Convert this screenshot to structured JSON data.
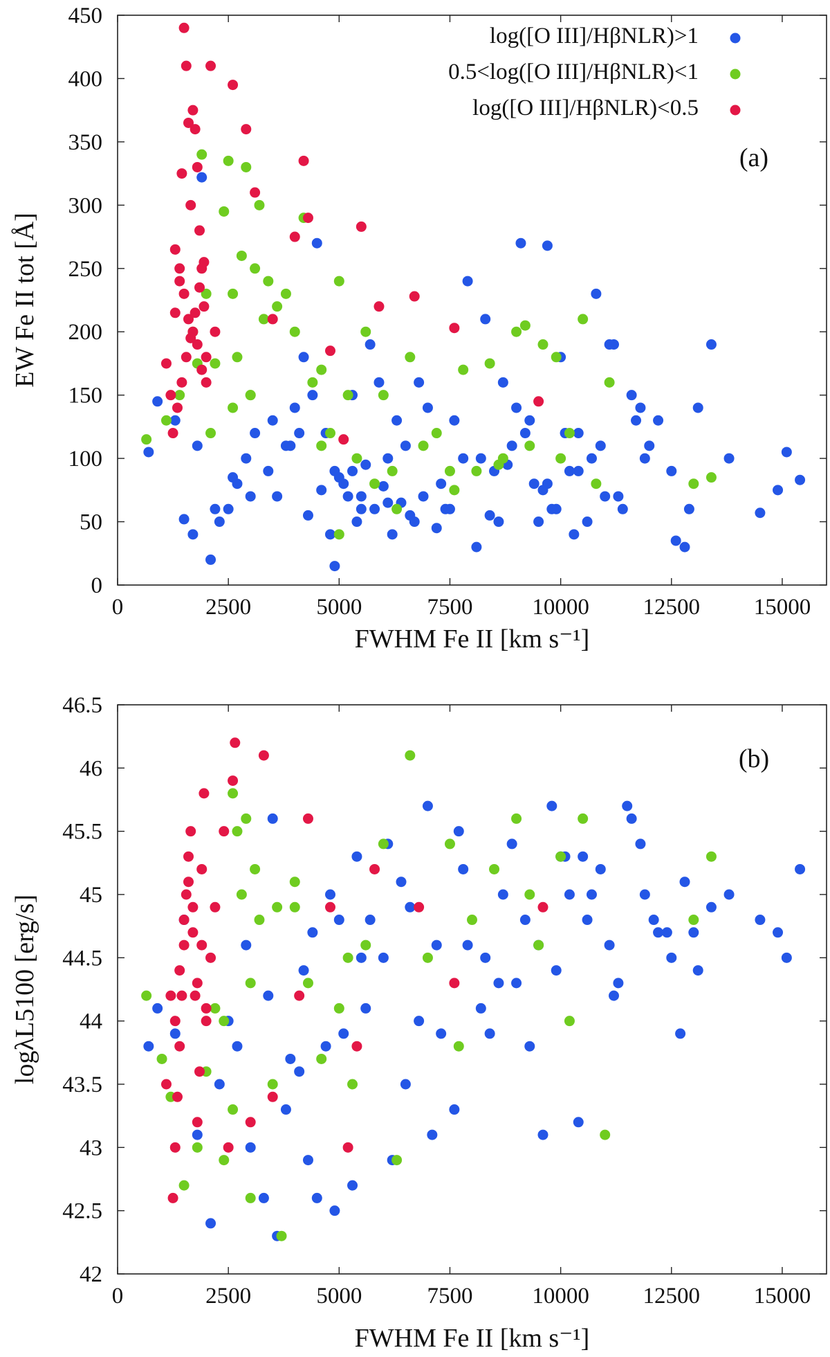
{
  "colors": {
    "blue": "#2456e6",
    "green": "#6fcc20",
    "red": "#e31746"
  },
  "legend": [
    {
      "key": "blue",
      "label": "log([O III]/HβNLR)>1"
    },
    {
      "key": "green",
      "label": "0.5<log([O III]/HβNLR)<1"
    },
    {
      "key": "red",
      "label": "log([O III]/HβNLR)<0.5"
    }
  ],
  "chart_data": [
    {
      "type": "scatter",
      "panel_label": "(a)",
      "xlabel": "FWHM Fe II [km s⁻¹]",
      "ylabel": "EW Fe II tot [Å]",
      "xlim": [
        0,
        16000
      ],
      "ylim": [
        0,
        450
      ],
      "xticks": [
        0,
        2500,
        5000,
        7500,
        10000,
        12500,
        15000
      ],
      "yticks": [
        0,
        50,
        100,
        150,
        200,
        250,
        300,
        350,
        400,
        450
      ],
      "series": [
        {
          "name": "log([O III]/HβNLR)>1",
          "color_key": "blue",
          "x": [
            700,
            900,
            1300,
            1500,
            1700,
            1900,
            2100,
            2300,
            2500,
            2700,
            2900,
            3100,
            3400,
            3600,
            3800,
            4000,
            4200,
            4500,
            4700,
            4900,
            5100,
            5300,
            5500,
            5700,
            5900,
            6100,
            6300,
            6500,
            6800,
            7000,
            7300,
            7600,
            7900,
            8100,
            8300,
            8500,
            8700,
            8900,
            9100,
            9300,
            9500,
            9700,
            9800,
            10000,
            10200,
            10400,
            10600,
            10800,
            11000,
            11200,
            11400,
            11600,
            11900,
            12200,
            12500,
            12800,
            13100,
            13400,
            13800,
            14500,
            14900,
            15100,
            15400,
            4300,
            4600,
            5000,
            5200,
            5400,
            5600,
            5800,
            6000,
            6200,
            6600,
            7200,
            7800,
            8400,
            8800,
            9400,
            9900,
            10300,
            10900,
            11300,
            11700,
            12000,
            12600,
            4100,
            4800,
            5300,
            6400,
            6900,
            7400,
            8200,
            9000,
            9600,
            10100,
            10700,
            1800,
            2200,
            2600,
            3000,
            3500,
            3900,
            4400,
            4900,
            5500,
            6100,
            6700,
            7500,
            8600,
            9200,
            9700,
            10400,
            11100,
            11800,
            12900
          ],
          "y": [
            105,
            145,
            130,
            52,
            40,
            322,
            20,
            50,
            60,
            80,
            100,
            120,
            90,
            70,
            110,
            140,
            180,
            270,
            120,
            15,
            80,
            150,
            60,
            190,
            160,
            100,
            130,
            110,
            160,
            140,
            80,
            130,
            240,
            30,
            210,
            90,
            160,
            110,
            270,
            130,
            50,
            268,
            60,
            180,
            90,
            120,
            50,
            230,
            70,
            190,
            60,
            150,
            100,
            130,
            90,
            30,
            140,
            190,
            100,
            57,
            75,
            105,
            83,
            55,
            75,
            85,
            70,
            50,
            95,
            60,
            78,
            40,
            55,
            45,
            100,
            55,
            95,
            80,
            60,
            40,
            110,
            70,
            130,
            110,
            35,
            120,
            40,
            90,
            65,
            70,
            60,
            100,
            140,
            75,
            120,
            100,
            110,
            60,
            85,
            70,
            130,
            110,
            150,
            90,
            70,
            65,
            50,
            60,
            50,
            120,
            80,
            90,
            190,
            140,
            60
          ]
        },
        {
          "name": "0.5<log([O III]/HβNLR)<1",
          "color_key": "green",
          "x": [
            650,
            1100,
            1400,
            1700,
            1900,
            2000,
            2200,
            2400,
            2500,
            2600,
            2700,
            2800,
            2900,
            3000,
            3100,
            3200,
            3300,
            3400,
            3600,
            3800,
            4000,
            4200,
            4400,
            4600,
            4800,
            5000,
            5200,
            5400,
            5600,
            5800,
            6000,
            6300,
            6600,
            6900,
            7200,
            7500,
            7800,
            8100,
            8400,
            8700,
            9000,
            9300,
            9600,
            9900,
            10200,
            10500,
            10800,
            11100,
            13000,
            13400,
            3000,
            2600,
            2100,
            1800,
            5000,
            6200,
            7600,
            9200,
            10000,
            4600,
            8600
          ],
          "y": [
            115,
            130,
            150,
            200,
            340,
            230,
            175,
            295,
            335,
            230,
            180,
            260,
            330,
            150,
            250,
            300,
            210,
            240,
            220,
            230,
            200,
            290,
            160,
            110,
            120,
            240,
            150,
            100,
            200,
            80,
            150,
            60,
            180,
            110,
            120,
            90,
            170,
            90,
            175,
            100,
            200,
            110,
            190,
            180,
            120,
            210,
            80,
            160,
            80,
            85,
            150,
            140,
            120,
            175,
            40,
            90,
            75,
            205,
            100,
            170,
            95
          ]
        },
        {
          "name": "log([O III]/HβNLR)<0.5",
          "color_key": "red",
          "x": [
            1100,
            1200,
            1300,
            1400,
            1450,
            1500,
            1550,
            1600,
            1650,
            1700,
            1750,
            1800,
            1850,
            1900,
            1950,
            2000,
            2100,
            2200,
            2600,
            2900,
            3100,
            3500,
            4000,
            4200,
            4300,
            4800,
            5100,
            5500,
            5900,
            6700,
            7600,
            9500,
            1300,
            1400,
            1500,
            1600,
            1700,
            1800,
            1900,
            2000,
            1250,
            1350,
            1450,
            1550,
            1650,
            1750,
            1850,
            1950
          ],
          "y": [
            175,
            150,
            215,
            250,
            325,
            440,
            410,
            365,
            300,
            375,
            360,
            330,
            280,
            250,
            220,
            180,
            410,
            200,
            395,
            360,
            310,
            210,
            275,
            335,
            290,
            185,
            115,
            283,
            220,
            228,
            203,
            145,
            265,
            240,
            230,
            210,
            200,
            190,
            170,
            160,
            120,
            140,
            160,
            180,
            195,
            215,
            235,
            255
          ]
        }
      ]
    },
    {
      "type": "scatter",
      "panel_label": "(b)",
      "xlabel": "FWHM Fe II [km s⁻¹]",
      "ylabel": "logλL5100 [erg/s]",
      "xlim": [
        0,
        16000
      ],
      "ylim": [
        42,
        46.5
      ],
      "xticks": [
        0,
        2500,
        5000,
        7500,
        10000,
        12500,
        15000
      ],
      "yticks": [
        42,
        42.5,
        43,
        43.5,
        44,
        44.5,
        45,
        45.5,
        46,
        46.5
      ],
      "series": [
        {
          "name": "log([O III]/HβNLR)>1",
          "color_key": "blue",
          "x": [
            700,
            900,
            1300,
            1500,
            1800,
            2100,
            2300,
            2500,
            2700,
            3000,
            3300,
            3600,
            3800,
            4100,
            4300,
            4500,
            4700,
            4900,
            5100,
            5300,
            5500,
            5700,
            6000,
            6200,
            6500,
            6800,
            7100,
            7300,
            7600,
            7900,
            8200,
            8400,
            8700,
            9000,
            9300,
            9600,
            9800,
            10000,
            10200,
            10400,
            10600,
            10900,
            11100,
            11300,
            11600,
            11900,
            12200,
            12500,
            12800,
            13000,
            13400,
            13800,
            14500,
            14900,
            15100,
            15400,
            3500,
            4200,
            4800,
            5400,
            6100,
            6600,
            7000,
            7700,
            8300,
            8900,
            9500,
            10100,
            10700,
            11500,
            12100,
            12700,
            2900,
            3400,
            3900,
            4400,
            5000,
            5600,
            6400,
            7200,
            7800,
            8600,
            9200,
            9900,
            10500,
            11200,
            11800,
            12400,
            13100
          ],
          "y": [
            43.8,
            44.1,
            43.9,
            44.8,
            43.1,
            42.4,
            43.5,
            44.0,
            43.8,
            43.0,
            42.6,
            42.3,
            43.3,
            43.6,
            42.9,
            42.6,
            43.8,
            42.5,
            43.9,
            42.7,
            44.5,
            44.8,
            44.5,
            42.9,
            43.5,
            44.0,
            43.1,
            43.9,
            43.3,
            44.6,
            44.1,
            43.9,
            45.0,
            44.3,
            43.8,
            43.1,
            45.7,
            45.3,
            45.0,
            43.2,
            44.8,
            45.2,
            44.6,
            44.3,
            45.6,
            45.0,
            44.7,
            44.5,
            45.1,
            44.7,
            44.9,
            45.0,
            44.8,
            44.7,
            44.5,
            45.2,
            45.6,
            44.4,
            45.0,
            45.3,
            45.4,
            44.9,
            45.7,
            45.5,
            44.5,
            45.4,
            44.6,
            45.3,
            45.0,
            45.7,
            44.8,
            43.9,
            44.6,
            44.2,
            43.7,
            44.7,
            44.8,
            44.1,
            45.1,
            44.6,
            45.2,
            44.3,
            44.8,
            44.4,
            45.3,
            44.2,
            45.4,
            44.7,
            44.4
          ]
        },
        {
          "name": "0.5<log([O III]/HβNLR)<1",
          "color_key": "green",
          "x": [
            650,
            1000,
            1200,
            1500,
            1800,
            2000,
            2200,
            2400,
            2600,
            2700,
            2800,
            2900,
            3000,
            3100,
            3200,
            3500,
            3700,
            4000,
            4300,
            4600,
            5000,
            5300,
            5600,
            6000,
            6300,
            6600,
            7000,
            7500,
            8000,
            8500,
            9000,
            9500,
            10000,
            10500,
            11000,
            13000,
            13400,
            3600,
            2400,
            2600,
            3000,
            4000,
            5200,
            7700,
            9300,
            10200
          ],
          "y": [
            44.2,
            43.7,
            43.4,
            42.7,
            43.0,
            43.6,
            44.1,
            42.9,
            45.8,
            45.5,
            45.0,
            45.6,
            44.3,
            45.2,
            44.8,
            43.5,
            42.3,
            44.9,
            44.3,
            43.7,
            44.1,
            43.5,
            44.6,
            45.4,
            42.9,
            46.1,
            44.5,
            45.4,
            44.8,
            45.2,
            45.6,
            44.6,
            45.3,
            45.6,
            43.1,
            44.8,
            45.3,
            44.9,
            44.0,
            43.3,
            42.6,
            45.1,
            44.5,
            43.8,
            45.0,
            44.0
          ]
        },
        {
          "name": "log([O III]/HβNLR)<0.5",
          "color_key": "red",
          "x": [
            1100,
            1200,
            1250,
            1300,
            1350,
            1400,
            1450,
            1500,
            1550,
            1600,
            1650,
            1700,
            1750,
            1800,
            1850,
            1900,
            1950,
            2000,
            2100,
            2200,
            2400,
            2500,
            2600,
            2650,
            3000,
            3300,
            3500,
            4100,
            4300,
            4800,
            5200,
            5400,
            5800,
            6800,
            7600,
            9600,
            1300,
            1400,
            1500,
            1600,
            1700,
            1800,
            1900,
            2000
          ],
          "y": [
            43.5,
            44.2,
            42.6,
            43.0,
            43.4,
            43.8,
            44.2,
            44.6,
            45.0,
            45.3,
            45.5,
            44.9,
            44.2,
            43.2,
            43.6,
            45.2,
            45.8,
            44.0,
            44.5,
            44.9,
            45.5,
            43.0,
            45.9,
            46.2,
            43.2,
            46.1,
            43.4,
            44.2,
            45.6,
            44.9,
            43.0,
            43.8,
            45.2,
            44.9,
            44.3,
            44.9,
            44.0,
            44.4,
            44.8,
            45.1,
            44.7,
            44.3,
            44.6,
            44.1
          ]
        }
      ]
    }
  ]
}
